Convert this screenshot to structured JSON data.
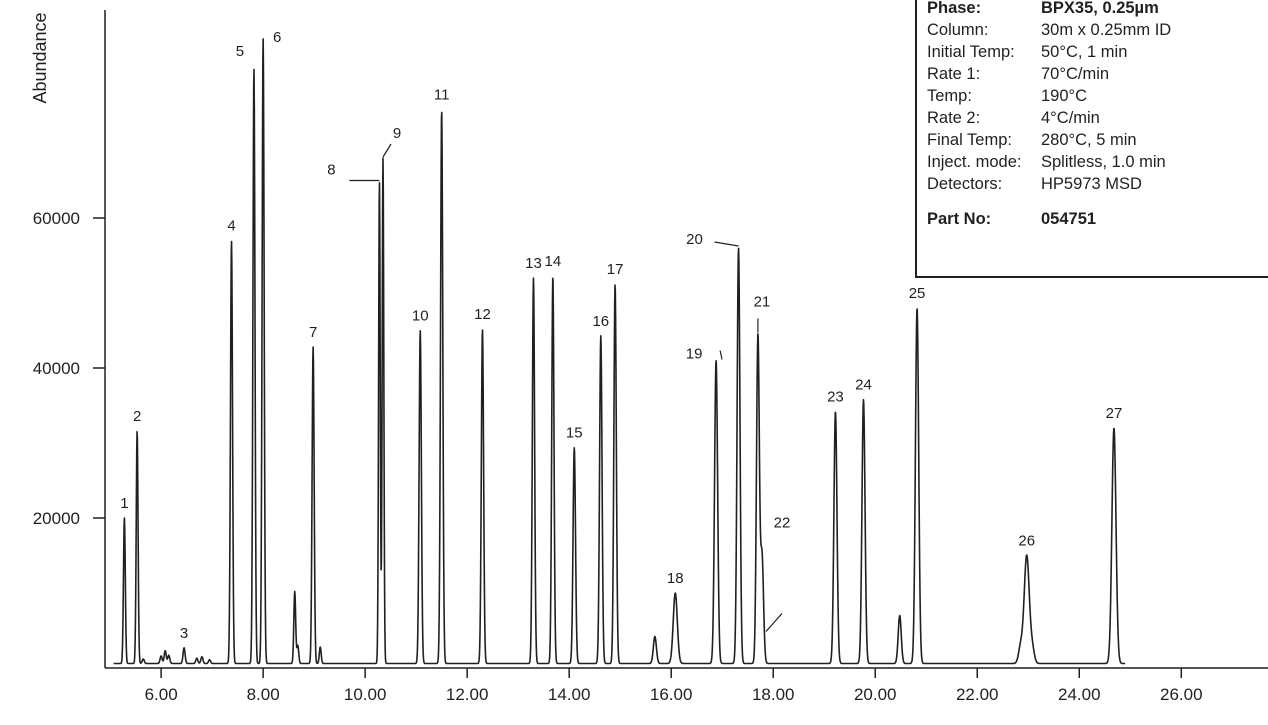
{
  "chart_data": {
    "type": "line",
    "ylabel": "Abundance",
    "xlabel": "",
    "xlim": [
      4.9,
      27.7
    ],
    "ylim": [
      0,
      84000
    ],
    "x_ticks": [
      6,
      8,
      10,
      12,
      14,
      16,
      18,
      20,
      22,
      24,
      26
    ],
    "x_tick_labels": [
      "6.00",
      "8.00",
      "10.00",
      "12.00",
      "14.00",
      "16.00",
      "18.00",
      "20.00",
      "22.00",
      "24.00",
      "26.00"
    ],
    "y_ticks": [
      20000,
      40000,
      60000
    ],
    "y_tick_labels": [
      "20000",
      "40000",
      "60000"
    ],
    "baseline": 600,
    "signal_end_x": 24.9,
    "grid": false,
    "peaks": [
      {
        "label": "1",
        "x": 5.28,
        "y": 20000,
        "w": 0.018
      },
      {
        "label": "2",
        "x": 5.53,
        "y": 31600,
        "w": 0.018
      },
      {
        "label": "3",
        "x": 6.45,
        "y": 2700,
        "w": 0.02
      },
      {
        "label": "4",
        "x": 7.38,
        "y": 57000,
        "w": 0.02
      },
      {
        "label": "5",
        "x": 7.82,
        "y": 80000,
        "w": 0.02
      },
      {
        "label": "6",
        "x": 8.0,
        "y": 84000,
        "w": 0.02
      },
      {
        "label": "7",
        "x": 8.98,
        "y": 42800,
        "w": 0.02
      },
      {
        "label": "8",
        "x": 10.28,
        "y": 65000,
        "w": 0.016
      },
      {
        "label": "9",
        "x": 10.35,
        "y": 68000,
        "w": 0.016
      },
      {
        "label": "10",
        "x": 11.08,
        "y": 45000,
        "w": 0.022
      },
      {
        "label": "11",
        "x": 11.5,
        "y": 74500,
        "w": 0.022
      },
      {
        "label": "12",
        "x": 12.3,
        "y": 45200,
        "w": 0.022
      },
      {
        "label": "13",
        "x": 13.3,
        "y": 52000,
        "w": 0.022
      },
      {
        "label": "14",
        "x": 13.68,
        "y": 52300,
        "w": 0.022
      },
      {
        "label": "15",
        "x": 14.1,
        "y": 29400,
        "w": 0.024
      },
      {
        "label": "16",
        "x": 14.62,
        "y": 44300,
        "w": 0.024
      },
      {
        "label": "17",
        "x": 14.9,
        "y": 51200,
        "w": 0.024
      },
      {
        "label": "18",
        "x": 16.08,
        "y": 10000,
        "w": 0.04
      },
      {
        "label": "19",
        "x": 16.88,
        "y": 41000,
        "w": 0.03
      },
      {
        "label": "20",
        "x": 17.32,
        "y": 56000,
        "w": 0.028
      },
      {
        "label": "21",
        "x": 17.7,
        "y": 44200,
        "w": 0.028
      },
      {
        "label": "22",
        "x": 17.78,
        "y": 15000,
        "w": 0.03
      },
      {
        "label": "23",
        "x": 19.22,
        "y": 34200,
        "w": 0.03
      },
      {
        "label": "24",
        "x": 19.77,
        "y": 35800,
        "w": 0.03
      },
      {
        "label": "25",
        "x": 20.82,
        "y": 48000,
        "w": 0.032
      },
      {
        "label": "26",
        "x": 22.97,
        "y": 15000,
        "w": 0.05
      },
      {
        "label": "27",
        "x": 24.68,
        "y": 32000,
        "w": 0.04
      }
    ],
    "minor_peaks": [
      {
        "x": 5.65,
        "y": 1200,
        "w": 0.02
      },
      {
        "x": 6.0,
        "y": 1600,
        "w": 0.02
      },
      {
        "x": 6.08,
        "y": 2300,
        "w": 0.02
      },
      {
        "x": 6.15,
        "y": 1700,
        "w": 0.02
      },
      {
        "x": 6.7,
        "y": 1300,
        "w": 0.02
      },
      {
        "x": 6.8,
        "y": 1500,
        "w": 0.02
      },
      {
        "x": 6.95,
        "y": 1100,
        "w": 0.02
      },
      {
        "x": 8.62,
        "y": 10200,
        "w": 0.018
      },
      {
        "x": 8.68,
        "y": 3000,
        "w": 0.018
      },
      {
        "x": 9.12,
        "y": 2800,
        "w": 0.018
      },
      {
        "x": 15.68,
        "y": 4200,
        "w": 0.03
      },
      {
        "x": 20.48,
        "y": 7000,
        "w": 0.03
      },
      {
        "x": 22.85,
        "y": 2800,
        "w": 0.04
      },
      {
        "x": 23.08,
        "y": 2500,
        "w": 0.04
      }
    ]
  },
  "conditions": {
    "rows": [
      {
        "key": "Phase:",
        "value": "BPX35, 0.25µm"
      },
      {
        "key": "Column:",
        "value": "30m x 0.25mm ID"
      },
      {
        "key": "Initial Temp:",
        "value": "50°C, 1 min"
      },
      {
        "key": "Rate 1:",
        "value": "70°C/min"
      },
      {
        "key": "Temp:",
        "value": "190°C"
      },
      {
        "key": "Rate 2:",
        "value": "4°C/min"
      },
      {
        "key": "Final Temp:",
        "value": "280°C, 5 min"
      },
      {
        "key": "Inject. mode:",
        "value": "Splitless, 1.0 min"
      },
      {
        "key": "Detectors:",
        "value": "HP5973 MSD"
      }
    ],
    "part_no_key": "Part No:",
    "part_no_value": "054751"
  }
}
